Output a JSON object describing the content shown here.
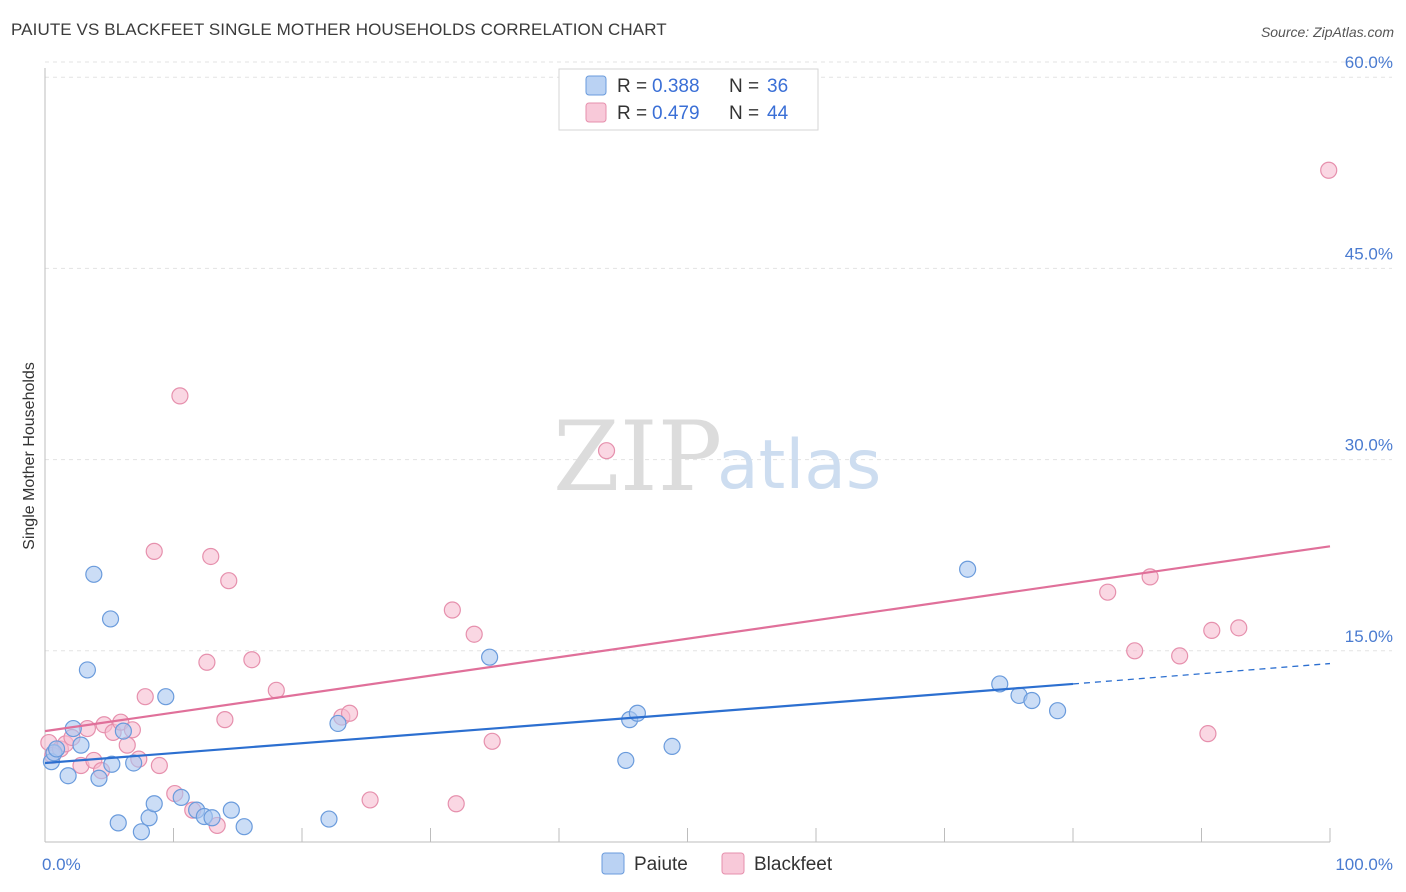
{
  "header": {
    "title": "PAIUTE VS BLACKFEET SINGLE MOTHER HOUSEHOLDS CORRELATION CHART",
    "source": "Source: ZipAtlas.com"
  },
  "watermark": {
    "zip": "ZIP",
    "atlas": "atlas"
  },
  "colors": {
    "paiute_fill": "#a9c7f0",
    "paiute_stroke": "#6a9bdc",
    "paiute_line": "#2c6fd0",
    "blackfeet_fill": "#f6bcd0",
    "blackfeet_stroke": "#e690ad",
    "blackfeet_line": "#e0709a",
    "grid": "#e3e3e3",
    "tick_label": "#4a7bd0"
  },
  "chart_data": {
    "type": "scatter",
    "title": "PAIUTE VS BLACKFEET SINGLE MOTHER HOUSEHOLDS CORRELATION CHART",
    "xlabel": "",
    "ylabel": "Single Mother Households",
    "xlim": [
      0,
      100
    ],
    "ylim": [
      0,
      63
    ],
    "x_tick_labels": [
      {
        "value": 0,
        "label": "0.0%"
      },
      {
        "value": 100,
        "label": "100.0%"
      }
    ],
    "y_ticks": [
      {
        "value": 15,
        "label": "15.0%"
      },
      {
        "value": 30,
        "label": "30.0%"
      },
      {
        "value": 45,
        "label": "45.0%"
      },
      {
        "value": 60,
        "label": "60.0%"
      }
    ],
    "legend": {
      "position": "top-center",
      "entries": [
        {
          "r_label": "R =",
          "r_value": "0.388",
          "n_label": "N =",
          "n_value": "36"
        },
        {
          "r_label": "R =",
          "r_value": "0.479",
          "n_label": "N =",
          "n_value": "44"
        }
      ]
    },
    "series": [
      {
        "name": "Paiute",
        "trend": {
          "x": [
            0,
            80
          ],
          "y": [
            6.2,
            12.4
          ],
          "dashed_to": [
            100,
            14.0
          ]
        },
        "points": [
          {
            "x": 0.5,
            "y": 6.3
          },
          {
            "x": 0.7,
            "y": 7.0
          },
          {
            "x": 1.8,
            "y": 5.2
          },
          {
            "x": 2.2,
            "y": 8.9
          },
          {
            "x": 2.8,
            "y": 7.6
          },
          {
            "x": 3.3,
            "y": 13.5
          },
          {
            "x": 3.8,
            "y": 21.0
          },
          {
            "x": 4.2,
            "y": 5.0
          },
          {
            "x": 5.1,
            "y": 17.5
          },
          {
            "x": 5.2,
            "y": 6.1
          },
          {
            "x": 5.7,
            "y": 1.5
          },
          {
            "x": 6.1,
            "y": 8.7
          },
          {
            "x": 6.9,
            "y": 6.2
          },
          {
            "x": 7.5,
            "y": 0.8
          },
          {
            "x": 8.1,
            "y": 1.9
          },
          {
            "x": 8.5,
            "y": 3.0
          },
          {
            "x": 9.4,
            "y": 11.4
          },
          {
            "x": 10.6,
            "y": 3.5
          },
          {
            "x": 11.8,
            "y": 2.5
          },
          {
            "x": 12.4,
            "y": 2.0
          },
          {
            "x": 13.0,
            "y": 1.9
          },
          {
            "x": 14.5,
            "y": 2.5
          },
          {
            "x": 15.5,
            "y": 1.2
          },
          {
            "x": 22.1,
            "y": 1.8
          },
          {
            "x": 22.8,
            "y": 9.3
          },
          {
            "x": 34.6,
            "y": 14.5
          },
          {
            "x": 45.2,
            "y": 6.4
          },
          {
            "x": 45.5,
            "y": 9.6
          },
          {
            "x": 46.1,
            "y": 10.1
          },
          {
            "x": 48.8,
            "y": 7.5
          },
          {
            "x": 71.8,
            "y": 21.4
          },
          {
            "x": 74.3,
            "y": 12.4
          },
          {
            "x": 75.8,
            "y": 11.5
          },
          {
            "x": 76.8,
            "y": 11.1
          },
          {
            "x": 78.8,
            "y": 10.3
          },
          {
            "x": 0.9,
            "y": 7.3
          }
        ]
      },
      {
        "name": "Blackfeet",
        "trend": {
          "x": [
            0,
            100
          ],
          "y": [
            8.7,
            23.2
          ]
        },
        "points": [
          {
            "x": 0.3,
            "y": 7.8
          },
          {
            "x": 0.6,
            "y": 6.8
          },
          {
            "x": 1.2,
            "y": 7.3
          },
          {
            "x": 1.6,
            "y": 7.7
          },
          {
            "x": 2.1,
            "y": 8.2
          },
          {
            "x": 2.8,
            "y": 6.0
          },
          {
            "x": 3.3,
            "y": 8.9
          },
          {
            "x": 3.8,
            "y": 6.4
          },
          {
            "x": 4.4,
            "y": 5.6
          },
          {
            "x": 4.6,
            "y": 9.2
          },
          {
            "x": 5.3,
            "y": 8.6
          },
          {
            "x": 5.9,
            "y": 9.4
          },
          {
            "x": 6.4,
            "y": 7.6
          },
          {
            "x": 6.8,
            "y": 8.8
          },
          {
            "x": 7.3,
            "y": 6.5
          },
          {
            "x": 7.8,
            "y": 11.4
          },
          {
            "x": 8.5,
            "y": 22.8
          },
          {
            "x": 8.9,
            "y": 6.0
          },
          {
            "x": 10.1,
            "y": 3.8
          },
          {
            "x": 10.5,
            "y": 35.0
          },
          {
            "x": 11.5,
            "y": 2.5
          },
          {
            "x": 12.6,
            "y": 14.1
          },
          {
            "x": 12.9,
            "y": 22.4
          },
          {
            "x": 13.4,
            "y": 1.3
          },
          {
            "x": 14.0,
            "y": 9.6
          },
          {
            "x": 14.3,
            "y": 20.5
          },
          {
            "x": 16.1,
            "y": 14.3
          },
          {
            "x": 18.0,
            "y": 11.9
          },
          {
            "x": 23.1,
            "y": 9.8
          },
          {
            "x": 23.7,
            "y": 10.1
          },
          {
            "x": 25.3,
            "y": 3.3
          },
          {
            "x": 31.7,
            "y": 18.2
          },
          {
            "x": 32.0,
            "y": 3.0
          },
          {
            "x": 33.4,
            "y": 16.3
          },
          {
            "x": 34.8,
            "y": 7.9
          },
          {
            "x": 43.7,
            "y": 30.7
          },
          {
            "x": 82.7,
            "y": 19.6
          },
          {
            "x": 84.8,
            "y": 15.0
          },
          {
            "x": 86.0,
            "y": 20.8
          },
          {
            "x": 88.3,
            "y": 14.6
          },
          {
            "x": 90.5,
            "y": 8.5
          },
          {
            "x": 90.8,
            "y": 16.6
          },
          {
            "x": 92.9,
            "y": 16.8
          },
          {
            "x": 99.9,
            "y": 52.7
          }
        ]
      }
    ]
  }
}
